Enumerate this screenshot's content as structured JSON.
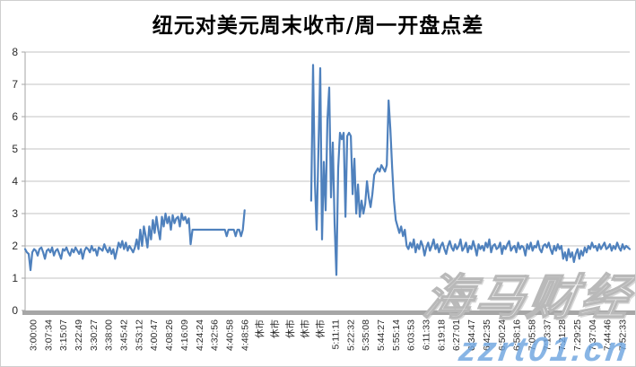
{
  "title": "纽元对美元周末收市/周一开盘点差",
  "watermark": {
    "brand_text": "海马财经",
    "site_text": "zzrt01.cn",
    "brand_color": "#c9c9c9",
    "site_color": "#6ea5df"
  },
  "chart_data": {
    "type": "line",
    "title": "纽元对美元周末收市/周一开盘点差",
    "xlabel": "",
    "ylabel": "",
    "ylim": [
      0,
      8
    ],
    "yticks": [
      0,
      1,
      2,
      3,
      4,
      5,
      6,
      7,
      8
    ],
    "grid": true,
    "legend": "none",
    "line_color": "#4F81BD",
    "grid_color": "#c3c3c3",
    "axis_color": "#a6a6a6",
    "tick_label_color": "#2b2b2b",
    "closed_market_label": "休市",
    "x_labels": [
      "3:00:00",
      "3:07:34",
      "3:15:07",
      "3:22:49",
      "3:30:27",
      "3:38:00",
      "3:45:42",
      "3:53:12",
      "4:00:47",
      "4:08:26",
      "4:16:09",
      "4:24:24",
      "4:32:56",
      "4:40:58",
      "4:48:56",
      "休市",
      "休市",
      "休市",
      "休市",
      "休市",
      "5:11:11",
      "5:22:32",
      "5:35:08",
      "5:44:27",
      "5:55:14",
      "6:03:53",
      "6:11:33",
      "6:19:18",
      "6:27:01",
      "6:34:47",
      "6:42:35",
      "6:50:24",
      "6:58:16",
      "7:05:58",
      "7:13:37",
      "7:21:28",
      "7:29:25",
      "7:37:04",
      "7:44:46",
      "7:52:33"
    ],
    "values": [
      1.9,
      1.8,
      1.75,
      1.25,
      1.8,
      1.9,
      1.85,
      1.7,
      1.9,
      1.95,
      1.8,
      1.6,
      1.85,
      1.9,
      1.8,
      1.95,
      1.7,
      1.85,
      1.9,
      1.75,
      1.6,
      1.9,
      1.85,
      1.95,
      1.8,
      1.7,
      1.9,
      1.8,
      1.95,
      1.85,
      1.75,
      1.9,
      1.6,
      1.85,
      1.95,
      1.9,
      1.8,
      2.0,
      1.85,
      1.9,
      1.7,
      1.95,
      1.9,
      1.85,
      2.05,
      1.9,
      1.8,
      1.95,
      1.75,
      1.9,
      1.6,
      1.85,
      2.1,
      1.95,
      2.15,
      1.9,
      2.1,
      1.85,
      2.0,
      1.9,
      1.8,
      1.95,
      2.2,
      1.9,
      2.5,
      2.0,
      2.6,
      2.3,
      1.95,
      2.6,
      2.2,
      2.8,
      2.4,
      2.9,
      2.5,
      2.2,
      2.9,
      2.6,
      3.0,
      2.7,
      2.9,
      2.5,
      2.95,
      2.7,
      2.85,
      2.9,
      2.6,
      3.0,
      2.8,
      2.9,
      2.7,
      2.85,
      2.05,
      2.5,
      2.5,
      2.5,
      2.5,
      2.5,
      2.5,
      2.5,
      2.5,
      2.5,
      2.5,
      2.5,
      2.5,
      2.5,
      2.5,
      2.5,
      2.5,
      2.5,
      2.5,
      2.5,
      2.3,
      2.5,
      2.5,
      2.5,
      2.5,
      2.3,
      2.5,
      2.5,
      2.3,
      2.5,
      3.1,
      null,
      null,
      null,
      null,
      null,
      null,
      null,
      null,
      null,
      null,
      null,
      null,
      null,
      null,
      null,
      null,
      null,
      null,
      null,
      null,
      null,
      null,
      null,
      null,
      null,
      null,
      null,
      null,
      null,
      null,
      null,
      null,
      null,
      null,
      null,
      null,
      3.4,
      7.6,
      4.0,
      2.5,
      5.0,
      7.5,
      2.2,
      4.6,
      3.1,
      5.9,
      6.9,
      3.5,
      5.2,
      2.7,
      1.1,
      4.4,
      5.5,
      5.3,
      5.5,
      2.9,
      5.4,
      5.5,
      5.4,
      3.6,
      4.7,
      3.0,
      3.9,
      2.9,
      3.4,
      3.0,
      3.3,
      4.0,
      3.5,
      3.2,
      3.6,
      4.2,
      4.3,
      4.4,
      4.3,
      4.5,
      4.4,
      4.3,
      4.5,
      6.5,
      5.6,
      4.4,
      3.4,
      2.8,
      2.6,
      2.4,
      2.6,
      2.3,
      2.5,
      2.0,
      1.9,
      2.1,
      1.95,
      2.2,
      1.8,
      2.05,
      1.9,
      2.15,
      2.0,
      1.7,
      1.95,
      2.1,
      1.85,
      2.0,
      2.2,
      1.9,
      2.05,
      1.8,
      2.0,
      2.1,
      1.9,
      1.75,
      2.0,
      2.15,
      1.95,
      1.85,
      2.05,
      1.9,
      2.0,
      2.2,
      1.85,
      1.95,
      2.1,
      1.8,
      2.0,
      1.9,
      2.15,
      1.95,
      1.7,
      2.05,
      1.9,
      2.0,
      1.85,
      2.1,
      1.95,
      2.2,
      1.8,
      2.0,
      2.05,
      1.9,
      1.95,
      2.1,
      1.75,
      2.0,
      1.9,
      2.05,
      2.15,
      1.85,
      1.95,
      2.0,
      1.8,
      2.1,
      1.9,
      2.0,
      1.95,
      1.7,
      2.05,
      1.9,
      2.1,
      1.85,
      2.0,
      1.95,
      2.15,
      1.9,
      1.8,
      2.0,
      2.05,
      1.95,
      2.1,
      1.9,
      1.75,
      2.0,
      1.85,
      2.05,
      1.9,
      2.0,
      1.6,
      1.8,
      1.55,
      1.9,
      1.65,
      1.8,
      1.5,
      1.75,
      1.9,
      1.6,
      1.85,
      1.7,
      1.95,
      1.8,
      2.0,
      1.9,
      2.1,
      1.95,
      2.0,
      1.85,
      2.05,
      1.9,
      2.0,
      2.1,
      1.9,
      1.95,
      2.05,
      1.85,
      2.0,
      1.9,
      2.1,
      1.95,
      1.85,
      2.05,
      1.9,
      2.0,
      1.95,
      1.9
    ]
  }
}
